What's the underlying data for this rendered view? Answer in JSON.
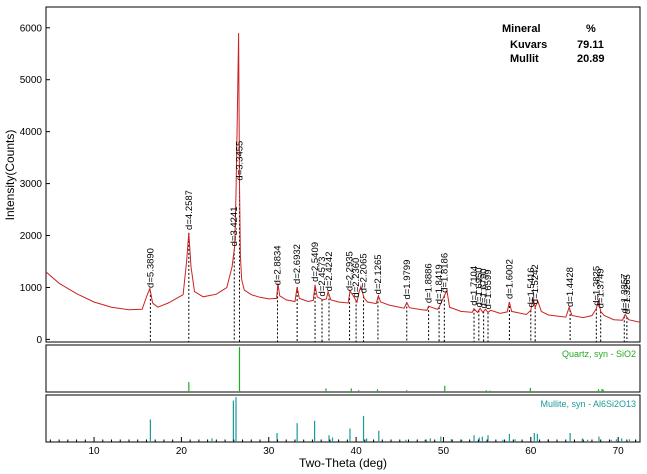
{
  "chart_data": {
    "type": "line",
    "xlabel": "Two-Theta (deg)",
    "ylabel": "Intensity(Counts)",
    "xlim": [
      4.5,
      72.5
    ],
    "ylim": [
      -50,
      6400
    ],
    "x_ticks": [
      10,
      20,
      30,
      40,
      50,
      60,
      70
    ],
    "y_ticks": [
      0,
      1000,
      2000,
      3000,
      4000,
      5000,
      6000
    ],
    "series": [
      {
        "color": "#cc2222",
        "x": [
          4.5,
          6,
          8,
          10,
          12,
          14,
          15.5,
          16.1,
          16.4,
          16.7,
          17.3,
          18.5,
          20.2,
          20.6,
          20.85,
          21.1,
          21.5,
          22.5,
          24,
          25.2,
          25.8,
          26.1,
          26.25,
          26.4,
          26.55,
          26.65,
          26.75,
          26.9,
          27.2,
          28,
          29,
          30,
          30.9,
          31.05,
          31.25,
          32,
          33,
          33.25,
          33.5,
          34.5,
          35.1,
          35.3,
          35.55,
          36.2,
          36.6,
          36.8,
          37.1,
          38,
          39.1,
          39.3,
          39.6,
          40.1,
          40.35,
          40.55,
          40.9,
          41.3,
          42.3,
          42.55,
          42.8,
          43.8,
          45.5,
          45.8,
          46.1,
          47.5,
          48.1,
          48.3,
          49.3,
          49.5,
          50.1,
          50.4,
          50.7,
          52,
          53.3,
          53.5,
          53.9,
          54.2,
          54.5,
          54.8,
          55.1,
          55.4,
          56.5,
          57.3,
          57.55,
          57.8,
          59.5,
          60,
          60.25,
          60.5,
          60.8,
          61.2,
          62,
          64,
          64.4,
          64.7,
          66,
          67,
          67.5,
          67.75,
          68,
          68.4,
          69.5,
          70.5,
          70.8,
          71.2,
          72.5
        ],
        "y": [
          1300,
          1080,
          880,
          720,
          620,
          570,
          580,
          860,
          980,
          700,
          620,
          700,
          860,
          1500,
          2050,
          1400,
          920,
          820,
          870,
          1000,
          1400,
          1800,
          2800,
          4300,
          5900,
          3000,
          1600,
          1150,
          950,
          860,
          810,
          780,
          790,
          1080,
          840,
          760,
          730,
          1010,
          790,
          730,
          750,
          1050,
          820,
          760,
          780,
          920,
          760,
          720,
          700,
          930,
          860,
          720,
          920,
          1020,
          800,
          720,
          690,
          840,
          720,
          660,
          600,
          710,
          610,
          570,
          560,
          640,
          580,
          620,
          840,
          940,
          620,
          540,
          520,
          590,
          520,
          600,
          520,
          580,
          520,
          560,
          500,
          530,
          720,
          540,
          480,
          560,
          790,
          620,
          740,
          540,
          470,
          430,
          620,
          460,
          420,
          460,
          590,
          760,
          540,
          460,
          380,
          370,
          480,
          380,
          330
        ]
      }
    ],
    "peak_labels": [
      {
        "x": 16.45,
        "text": "d=5.3890"
      },
      {
        "x": 20.85,
        "text": "d=4.2587"
      },
      {
        "x": 26.05,
        "text": "d=3.4241"
      },
      {
        "x": 26.65,
        "text": "d=3.3455"
      },
      {
        "x": 31.0,
        "text": "d=2.8834"
      },
      {
        "x": 33.25,
        "text": "d=2.6932"
      },
      {
        "x": 35.3,
        "text": "d=2.5409"
      },
      {
        "x": 36.1,
        "text": "d=2.4573"
      },
      {
        "x": 36.9,
        "text": "d=2.4242"
      },
      {
        "x": 39.25,
        "text": "d=2.2935"
      },
      {
        "x": 40.0,
        "text": "d=2.2360"
      },
      {
        "x": 40.85,
        "text": "d=2.2065"
      },
      {
        "x": 42.5,
        "text": "d=2.1265"
      },
      {
        "x": 45.8,
        "text": "d=1.9799"
      },
      {
        "x": 48.3,
        "text": "d=1.8886"
      },
      {
        "x": 49.5,
        "text": "d=1.8419"
      },
      {
        "x": 50.1,
        "text": "d=1.8186"
      },
      {
        "x": 53.5,
        "text": "d=1.7104"
      },
      {
        "x": 54.05,
        "text": "d=1.6950"
      },
      {
        "x": 54.6,
        "text": "d=1.6790"
      },
      {
        "x": 55.1,
        "text": "d=1.6599"
      },
      {
        "x": 57.55,
        "text": "d=1.6002"
      },
      {
        "x": 60.0,
        "text": "d=1.5416"
      },
      {
        "x": 60.5,
        "text": "d=1.5242"
      },
      {
        "x": 64.5,
        "text": "d=1.4428"
      },
      {
        "x": 67.5,
        "text": "d=1.3825"
      },
      {
        "x": 68.0,
        "text": "d=1.3749"
      },
      {
        "x": 70.7,
        "text": "d=1.3357"
      },
      {
        "x": 71.0,
        "text": "d=1.3265"
      }
    ],
    "reference_patterns": [
      {
        "name": "Quartz, syn - SiO2",
        "color": "#22aa22",
        "lines": [
          [
            20.85,
            0.22
          ],
          [
            26.65,
            1.0
          ],
          [
            36.55,
            0.08
          ],
          [
            39.45,
            0.08
          ],
          [
            40.3,
            0.04
          ],
          [
            42.45,
            0.06
          ],
          [
            45.8,
            0.04
          ],
          [
            50.15,
            0.14
          ],
          [
            54.9,
            0.04
          ],
          [
            55.3,
            0.03
          ],
          [
            59.95,
            0.09
          ],
          [
            64.0,
            0.02
          ],
          [
            67.75,
            0.06
          ],
          [
            68.15,
            0.07
          ],
          [
            68.3,
            0.05
          ]
        ]
      },
      {
        "name": "Mullite, syn - Al6Si2O13",
        "color": "#1a9a9a",
        "lines": [
          [
            16.45,
            0.5
          ],
          [
            23.5,
            0.08
          ],
          [
            25.95,
            0.92
          ],
          [
            26.25,
            1.0
          ],
          [
            30.95,
            0.2
          ],
          [
            33.25,
            0.42
          ],
          [
            35.25,
            0.47
          ],
          [
            36.9,
            0.15
          ],
          [
            37.3,
            0.1
          ],
          [
            39.3,
            0.3
          ],
          [
            40.85,
            0.58
          ],
          [
            41.2,
            0.08
          ],
          [
            42.6,
            0.25
          ],
          [
            45.7,
            0.05
          ],
          [
            47.9,
            0.05
          ],
          [
            48.5,
            0.08
          ],
          [
            49.7,
            0.12
          ],
          [
            50.9,
            0.06
          ],
          [
            52.1,
            0.05
          ],
          [
            53.5,
            0.15
          ],
          [
            54.1,
            0.1
          ],
          [
            54.45,
            0.12
          ],
          [
            55.1,
            0.15
          ],
          [
            56.8,
            0.05
          ],
          [
            57.55,
            0.18
          ],
          [
            58.2,
            0.06
          ],
          [
            60.4,
            0.2
          ],
          [
            60.75,
            0.18
          ],
          [
            62.0,
            0.06
          ],
          [
            64.5,
            0.2
          ],
          [
            65.9,
            0.08
          ],
          [
            66.5,
            0.05
          ],
          [
            67.8,
            0.12
          ],
          [
            69.2,
            0.05
          ],
          [
            69.8,
            0.06
          ],
          [
            70.4,
            0.08
          ],
          [
            71.3,
            0.06
          ],
          [
            72.0,
            0.05
          ]
        ]
      }
    ],
    "table": {
      "header_mineral": "Mineral",
      "header_percent": "%",
      "rows": [
        {
          "name": "Kuvars",
          "value": "79.11"
        },
        {
          "name": "Mullit",
          "value": "20.89"
        }
      ]
    }
  }
}
